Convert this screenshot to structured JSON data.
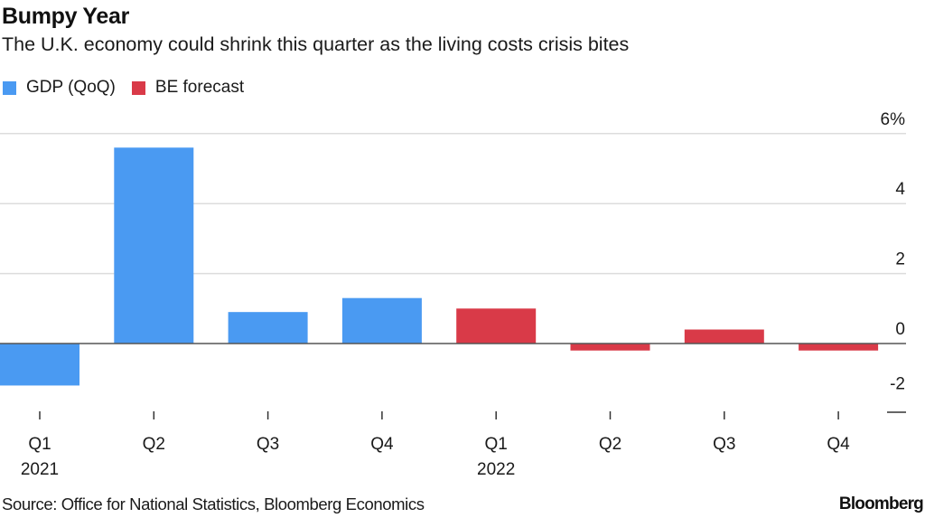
{
  "header": {
    "title": "Bumpy Year",
    "subtitle": "The U.K. economy could shrink this quarter as the living costs crisis bites"
  },
  "footer": {
    "source": "Source: Office for National Statistics, Bloomberg Economics",
    "logo": "Bloomberg"
  },
  "colors": {
    "gdp": "#4a9af2",
    "forecast": "#d93a48",
    "gridline": "#dcdcdc",
    "zero_line": "#555555",
    "text": "#1a1a1a"
  },
  "chart_data": {
    "type": "bar",
    "title": "Bumpy Year",
    "subtitle": "The U.K. economy could shrink this quarter as the living costs crisis bites",
    "xlabel": "",
    "ylabel": "",
    "categories": [
      "Q1 2021",
      "Q2 2021",
      "Q3 2021",
      "Q4 2021",
      "Q1 2022",
      "Q2 2022",
      "Q3 2022",
      "Q4 2022"
    ],
    "x_tick_labels": [
      {
        "quarter": "Q1",
        "year": "2021"
      },
      {
        "quarter": "Q2",
        "year": ""
      },
      {
        "quarter": "Q3",
        "year": ""
      },
      {
        "quarter": "Q4",
        "year": ""
      },
      {
        "quarter": "Q1",
        "year": "2022"
      },
      {
        "quarter": "Q2",
        "year": ""
      },
      {
        "quarter": "Q3",
        "year": ""
      },
      {
        "quarter": "Q4",
        "year": ""
      }
    ],
    "values": [
      -1.2,
      5.6,
      0.9,
      1.3,
      1.0,
      -0.2,
      0.4,
      -0.2
    ],
    "series_of_point": [
      "GDP (QoQ)",
      "GDP (QoQ)",
      "GDP (QoQ)",
      "GDP (QoQ)",
      "BE forecast",
      "BE forecast",
      "BE forecast",
      "BE forecast"
    ],
    "series": [
      {
        "name": "GDP (QoQ)",
        "color": "#4a9af2",
        "values": [
          -1.2,
          5.6,
          0.9,
          1.3,
          null,
          null,
          null,
          null
        ]
      },
      {
        "name": "BE forecast",
        "color": "#d93a48",
        "values": [
          null,
          null,
          null,
          null,
          1.0,
          -0.2,
          0.4,
          -0.2
        ]
      }
    ],
    "legend": [
      "GDP (QoQ)",
      "BE forecast"
    ],
    "legend_position": "top-left",
    "y_ticks": [
      6,
      4,
      2,
      0,
      -2
    ],
    "y_tick_labels": [
      "6%",
      "4",
      "2",
      "0",
      "-2"
    ],
    "y_axis_position": "right",
    "ylim": [
      -2,
      6
    ],
    "grid": true
  }
}
